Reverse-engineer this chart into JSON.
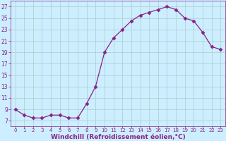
{
  "x": [
    0,
    1,
    2,
    3,
    4,
    5,
    6,
    7,
    8,
    9,
    10,
    11,
    12,
    13,
    14,
    15,
    16,
    17,
    18,
    19,
    20,
    21,
    22,
    23
  ],
  "y": [
    9,
    8,
    7.5,
    7.5,
    8,
    8,
    7.5,
    7.5,
    10,
    13,
    19,
    21.5,
    23,
    24.5,
    25.5,
    26,
    26.5,
    27,
    26.5,
    25,
    24.5,
    22.5,
    20,
    19.5
  ],
  "line_color": "#882288",
  "marker": "D",
  "marker_size": 2.5,
  "bg_color": "#cceeff",
  "grid_color": "#aacccc",
  "xlabel": "Windchill (Refroidissement éolien,°C)",
  "xlabel_fontsize": 6.5,
  "ytick_labels": [
    "7",
    "9",
    "11",
    "13",
    "15",
    "17",
    "19",
    "21",
    "23",
    "25",
    "27"
  ],
  "ytick_values": [
    7,
    9,
    11,
    13,
    15,
    17,
    19,
    21,
    23,
    25,
    27
  ],
  "xtick_values": [
    0,
    1,
    2,
    3,
    4,
    5,
    6,
    7,
    8,
    9,
    10,
    11,
    12,
    13,
    14,
    15,
    16,
    17,
    18,
    19,
    20,
    21,
    22,
    23
  ],
  "ylim": [
    6.0,
    28.0
  ],
  "xlim": [
    -0.5,
    23.5
  ],
  "tick_fontsize": 5.5,
  "xtick_fontsize": 5.0
}
